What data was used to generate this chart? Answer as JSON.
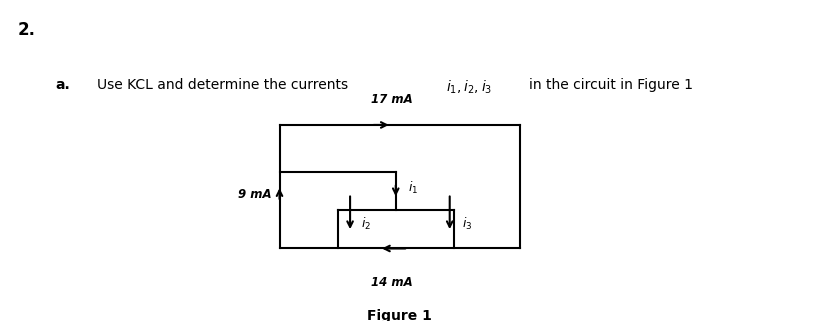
{
  "title_number": "2.",
  "question_label": "a.",
  "question_text_pre": "Use KCL and determine the currents ",
  "question_math": "i_1,i_2,i_3",
  "question_text_post": " in the circuit in Figure 1",
  "figure_label": "Figure 1",
  "current_17": "17 mA",
  "current_9": "9 mA",
  "current_14": "14 mA",
  "bg_color": "#ffffff",
  "line_color": "#000000",
  "OL": 0.33,
  "OR": 0.62,
  "OT": 0.42,
  "OB": 0.85,
  "MH": 0.57,
  "MR": 0.48,
  "IL": 0.4,
  "IR": 0.54,
  "IT": 0.65
}
